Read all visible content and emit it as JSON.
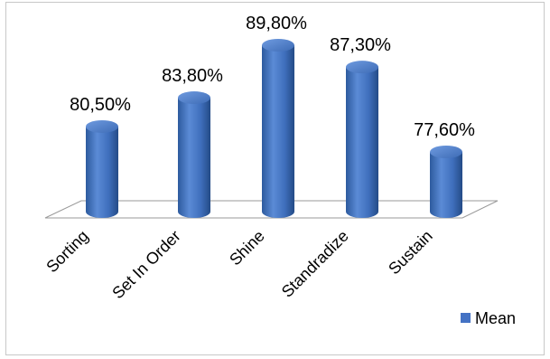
{
  "chart_data": {
    "type": "bar",
    "categories": [
      "Sorting",
      "Set In Order",
      "Shine",
      "Standradize",
      "Sustain"
    ],
    "series": [
      {
        "name": "Mean",
        "values": [
          80.5,
          83.8,
          89.8,
          87.3,
          77.6
        ],
        "labels": [
          "80,50%",
          "83,80%",
          "89,80%",
          "87,30%",
          "77,60%"
        ],
        "color": "#4472C4"
      }
    ],
    "ylim": [
      74,
      92
    ],
    "grid": false,
    "legend": "bottom-right",
    "bar_style": "3d-cylinder"
  }
}
